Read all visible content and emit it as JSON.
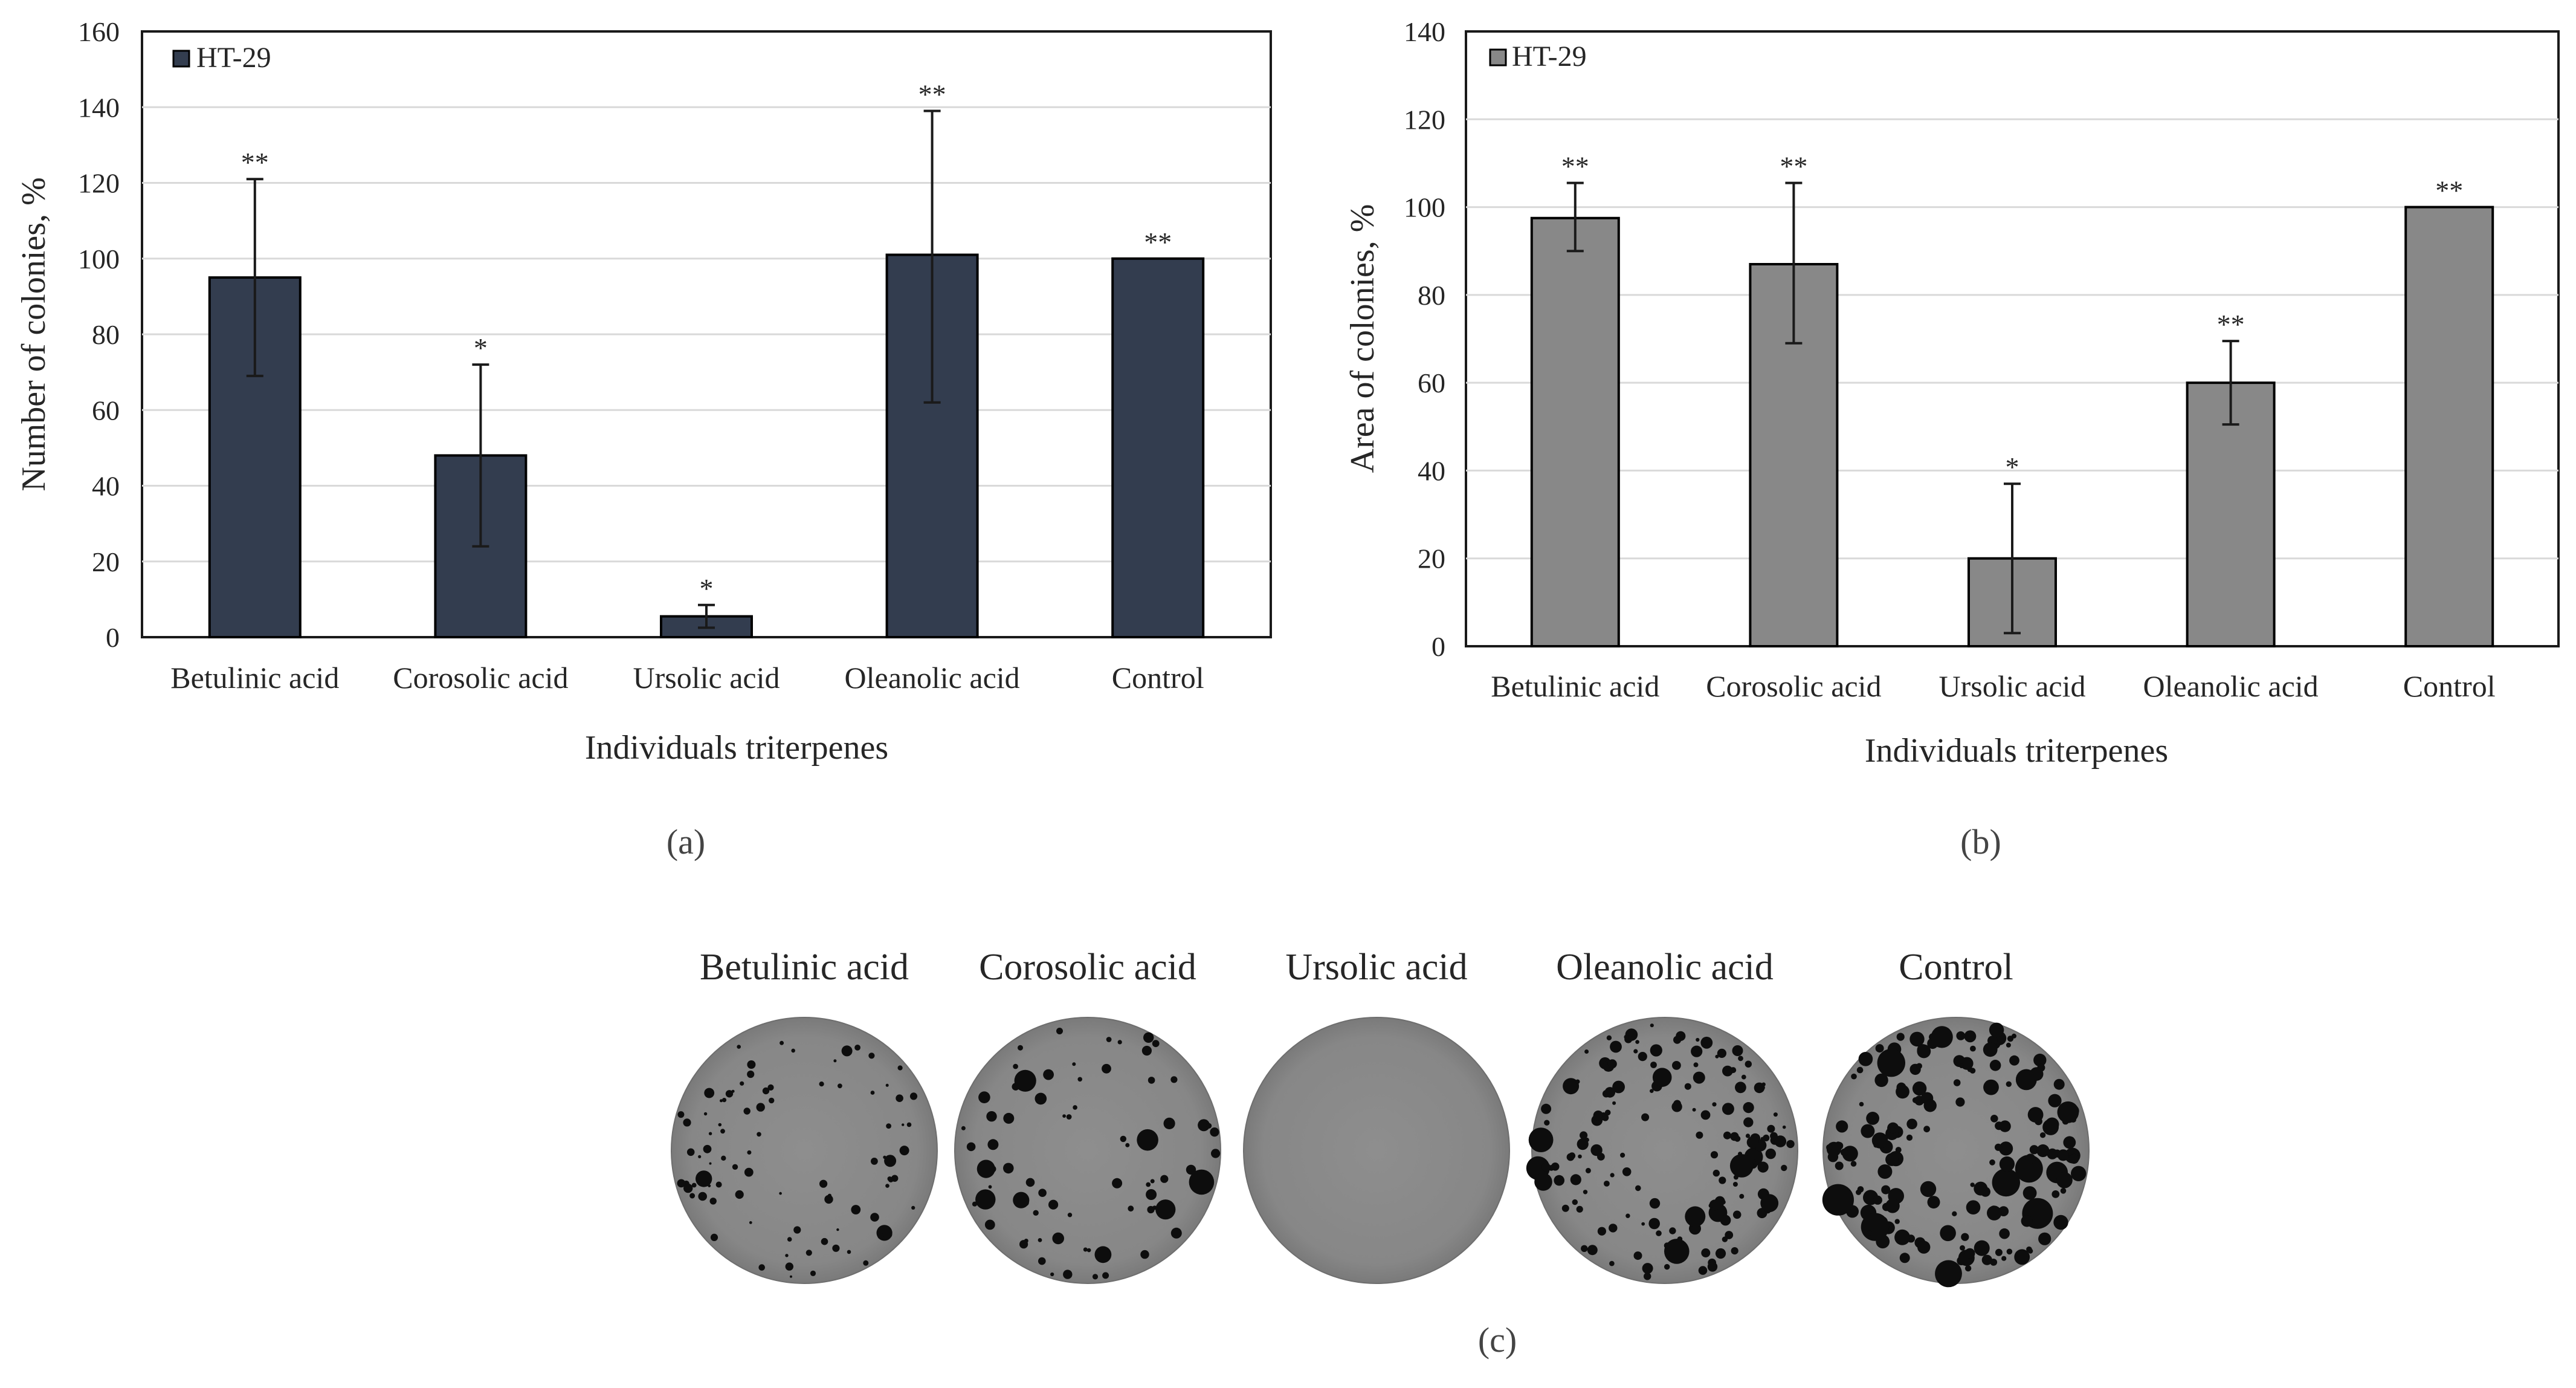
{
  "chart_data": [
    {
      "type": "bar",
      "panel_label": "(a)",
      "title": "",
      "xlabel": "Individuals triterpenes",
      "ylabel": "Number of colonies, %",
      "ylim": [
        0,
        160
      ],
      "yticks": [
        0,
        20,
        40,
        60,
        80,
        100,
        120,
        140,
        160
      ],
      "categories": [
        "Betulinic acid",
        "Corosolic acid",
        "Ursolic acid",
        "Oleanolic acid",
        "Control"
      ],
      "series": [
        {
          "name": "HT-29",
          "color": "#333d4f",
          "values": [
            95,
            48,
            5.5,
            101,
            100
          ],
          "error_low": [
            69,
            24,
            2.5,
            62,
            100
          ],
          "error_high": [
            121,
            72,
            8.5,
            139,
            100
          ],
          "significance": [
            "**",
            "*",
            "*",
            "**",
            "**"
          ]
        }
      ],
      "legend": "top-left",
      "grid": true
    },
    {
      "type": "bar",
      "panel_label": "(b)",
      "title": "",
      "xlabel": "Individuals triterpenes",
      "ylabel": "Area of colonies, %",
      "ylim": [
        0,
        140
      ],
      "yticks": [
        0,
        20,
        40,
        60,
        80,
        100,
        120,
        140
      ],
      "categories": [
        "Betulinic acid",
        "Corosolic acid",
        "Ursolic acid",
        "Oleanolic acid",
        "Control"
      ],
      "series": [
        {
          "name": "HT-29",
          "color": "#888888",
          "values": [
            97.5,
            87,
            20,
            60,
            100
          ],
          "error_low": [
            90,
            69,
            3,
            50.5,
            100
          ],
          "error_high": [
            105.5,
            105.5,
            37,
            69.5,
            100
          ],
          "significance": [
            "**",
            "**",
            "*",
            "**",
            "**"
          ]
        }
      ],
      "legend": "top-left",
      "grid": true
    }
  ],
  "panel_c": {
    "panel_label": "(c)",
    "dishes": [
      {
        "label": "Betulinic acid",
        "colony_density": "moderate-small"
      },
      {
        "label": "Corosolic acid",
        "colony_density": "moderate"
      },
      {
        "label": "Ursolic acid",
        "colony_density": "none"
      },
      {
        "label": "Oleanolic acid",
        "colony_density": "high"
      },
      {
        "label": "Control",
        "colony_density": "high-large"
      }
    ]
  }
}
